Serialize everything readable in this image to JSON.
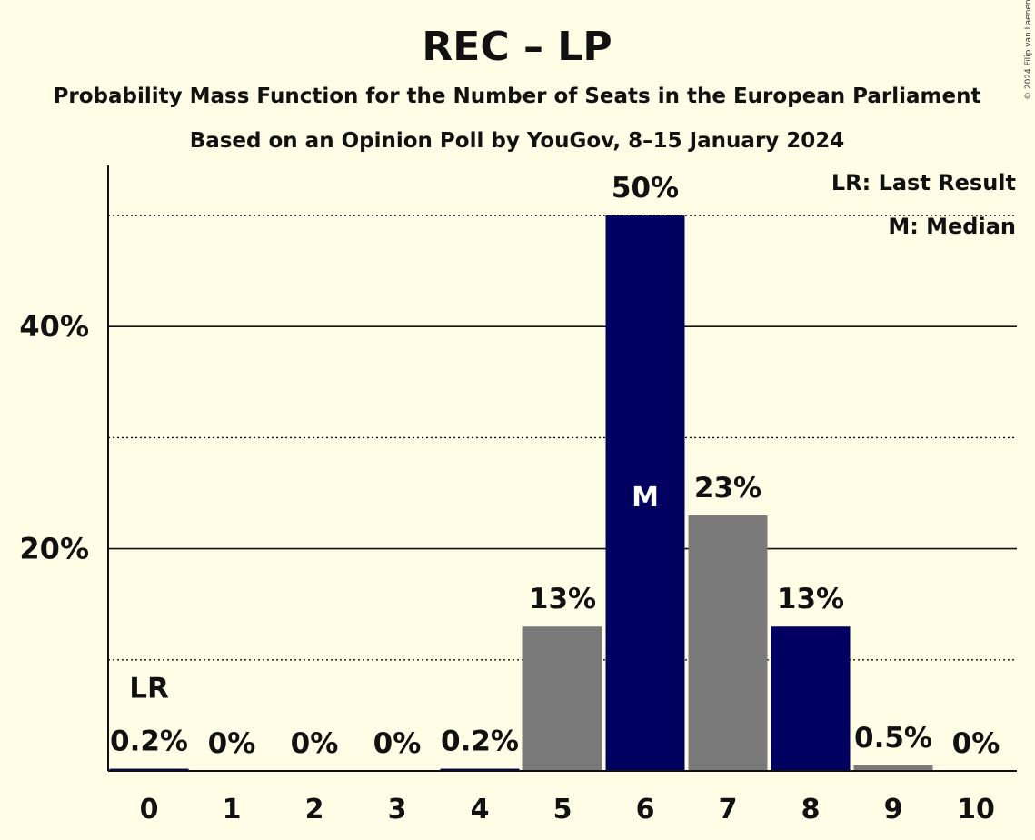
{
  "chart_data": {
    "type": "bar",
    "title": "REC – LP",
    "subtitle": "Probability Mass Function for the Number of Seats in the European Parliament",
    "subtitle2": "Based on an Opinion Poll by YouGov, 8–15 January 2024",
    "categories": [
      "0",
      "1",
      "2",
      "3",
      "4",
      "5",
      "6",
      "7",
      "8",
      "9",
      "10"
    ],
    "values": [
      0.2,
      0,
      0,
      0,
      0.2,
      13,
      50,
      23,
      13,
      0.5,
      0
    ],
    "labels": [
      "0.2%",
      "0%",
      "0%",
      "0%",
      "0.2%",
      "13%",
      "50%",
      "23%",
      "13%",
      "0.5%",
      "0%"
    ],
    "bar_colors": [
      "#000060",
      "#000060",
      "#000060",
      "#000060",
      "#000060",
      "#7a7a7a",
      "#000060",
      "#7a7a7a",
      "#000060",
      "#7a7a7a",
      "#7a7a7a"
    ],
    "ylim": [
      0,
      54.5
    ],
    "yticks": [
      {
        "value": 20,
        "label": "20%"
      },
      {
        "value": 40,
        "label": "40%"
      }
    ],
    "minor_gridlines": [
      10,
      30,
      50
    ],
    "last_result": {
      "index": 0,
      "marker": "LR"
    },
    "median": {
      "index": 6,
      "marker": "M"
    },
    "legend": [
      "LR: Last Result",
      "M: Median"
    ],
    "legend_position": "top-right",
    "copyright": "© 2024 Filip van Laenen"
  }
}
